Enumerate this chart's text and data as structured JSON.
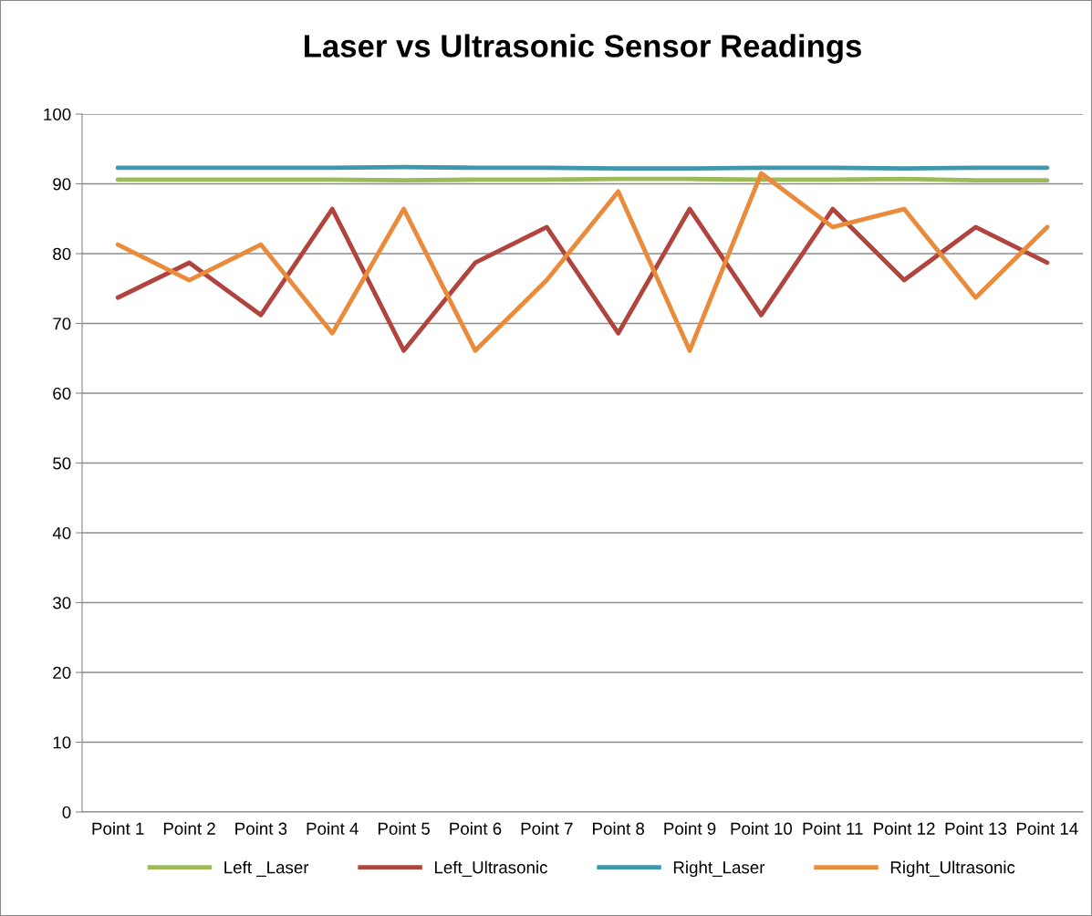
{
  "chart_data": {
    "type": "line",
    "title": "Laser vs Ultrasonic Sensor Readings",
    "categories": [
      "Point 1",
      "Point 2",
      "Point 3",
      "Point 4",
      "Point 5",
      "Point 6",
      "Point 7",
      "Point 8",
      "Point 9",
      "Point 10",
      "Point 11",
      "Point 12",
      "Point 13",
      "Point 14"
    ],
    "series": [
      {
        "name": "Left _Laser",
        "color": "#9bbb59",
        "values": [
          90.6,
          90.6,
          90.6,
          90.6,
          90.5,
          90.6,
          90.6,
          90.7,
          90.7,
          90.6,
          90.6,
          90.7,
          90.5,
          90.5
        ]
      },
      {
        "name": "Left_Ultrasonic",
        "color": "#b0443f",
        "values": [
          73.7,
          78.7,
          71.2,
          86.4,
          66.1,
          78.7,
          83.8,
          68.6,
          86.4,
          71.2,
          86.4,
          76.2,
          83.8,
          78.7
        ]
      },
      {
        "name": "Right_Laser",
        "color": "#3f97ad",
        "values": [
          92.3,
          92.3,
          92.3,
          92.3,
          92.4,
          92.3,
          92.3,
          92.2,
          92.2,
          92.3,
          92.3,
          92.2,
          92.3,
          92.3
        ]
      },
      {
        "name": "Right_Ultrasonic",
        "color": "#e98b3a",
        "values": [
          81.3,
          76.2,
          81.3,
          68.6,
          86.4,
          66.1,
          76.2,
          88.9,
          66.1,
          91.5,
          83.8,
          86.4,
          73.7,
          83.8
        ]
      }
    ],
    "ylim": [
      0,
      100
    ],
    "yticks": [
      0,
      10,
      20,
      30,
      40,
      50,
      60,
      70,
      80,
      90,
      100
    ],
    "grid": "y",
    "legend": "bottom",
    "marker": "none",
    "line_style": "solid"
  }
}
